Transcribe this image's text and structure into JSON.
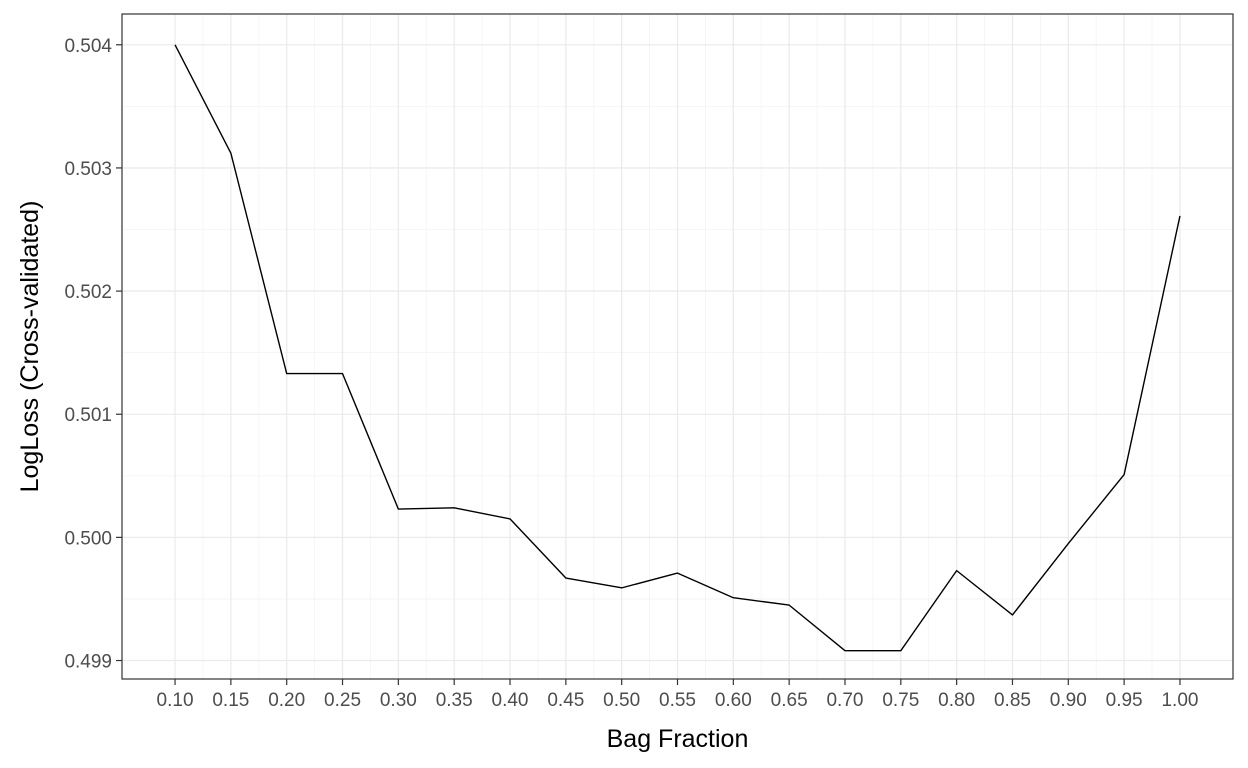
{
  "chart_data": {
    "type": "line",
    "title": "",
    "xlabel": "Bag Fraction",
    "ylabel": "LogLoss (Cross-validated)",
    "x": [
      0.1,
      0.15,
      0.2,
      0.25,
      0.3,
      0.35,
      0.4,
      0.45,
      0.5,
      0.55,
      0.6,
      0.65,
      0.7,
      0.75,
      0.8,
      0.85,
      0.9,
      0.95,
      1.0
    ],
    "y": [
      0.504,
      0.50312,
      0.50133,
      0.50133,
      0.50023,
      0.50024,
      0.50015,
      0.49967,
      0.49959,
      0.49971,
      0.49951,
      0.49945,
      0.49908,
      0.49908,
      0.49973,
      0.49937,
      0.49995,
      0.50051,
      0.50261
    ],
    "x_ticks": [
      "0.10",
      "0.15",
      "0.20",
      "0.25",
      "0.30",
      "0.35",
      "0.40",
      "0.45",
      "0.50",
      "0.55",
      "0.60",
      "0.65",
      "0.70",
      "0.75",
      "0.80",
      "0.85",
      "0.90",
      "0.95",
      "1.00"
    ],
    "y_ticks": [
      {
        "value": 0.499,
        "label": "0.499"
      },
      {
        "value": 0.5,
        "label": "0.500"
      },
      {
        "value": 0.501,
        "label": "0.501"
      },
      {
        "value": 0.502,
        "label": "0.502"
      },
      {
        "value": 0.503,
        "label": "0.503"
      },
      {
        "value": 0.504,
        "label": "0.504"
      }
    ],
    "xlim": [
      0.0525,
      1.0475
    ],
    "ylim": [
      0.49885,
      0.50425
    ],
    "grid": true,
    "legend": "none",
    "line_color": "#000000"
  }
}
